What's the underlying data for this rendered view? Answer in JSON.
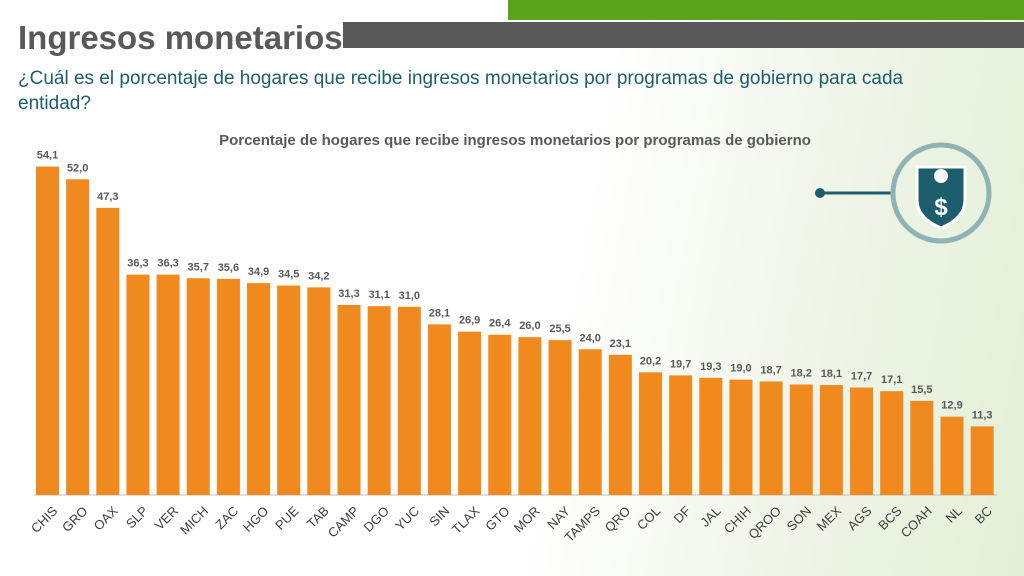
{
  "page": {
    "title": "Ingresos monetarios",
    "question": "¿Cuál es el porcentaje de hogares que recibe ingresos monetarios por programas de gobierno para cada entidad?"
  },
  "colors": {
    "bar": "#f0891e",
    "accent_green": "#5ba319",
    "accent_gray": "#595959",
    "teal": "#1c5e6e"
  },
  "icon": {
    "name": "money-shield-icon"
  },
  "chart_data": {
    "type": "bar",
    "title": "Porcentaje de hogares que recibe ingresos monetarios por programas de gobierno",
    "xlabel": "",
    "ylabel": "",
    "ylim": [
      0,
      56
    ],
    "categories": [
      "CHIS",
      "GRO",
      "OAX",
      "SLP",
      "VER",
      "MICH",
      "ZAC",
      "HGO",
      "PUE",
      "TAB",
      "CAMP",
      "DGO",
      "YUC",
      "SIN",
      "TLAX",
      "GTO",
      "MOR",
      "NAY",
      "TAMPS",
      "QRO",
      "COL",
      "DF",
      "JAL",
      "CHIH",
      "QROO",
      "SON",
      "MEX",
      "AGS",
      "BCS",
      "COAH",
      "NL",
      "BC"
    ],
    "values": [
      54.1,
      52.0,
      47.3,
      36.3,
      36.3,
      35.7,
      35.6,
      34.9,
      34.5,
      34.2,
      31.3,
      31.1,
      31.0,
      28.1,
      26.9,
      26.4,
      26.0,
      25.5,
      24.0,
      23.1,
      20.2,
      19.7,
      19.3,
      19.0,
      18.7,
      18.2,
      18.1,
      17.7,
      17.1,
      15.5,
      12.9,
      11.3
    ],
    "value_labels": [
      "54,1",
      "52,0",
      "47,3",
      "36,3",
      "36,3",
      "35,7",
      "35,6",
      "34,9",
      "34,5",
      "34,2",
      "31,3",
      "31,1",
      "31,0",
      "28,1",
      "26,9",
      "26,4",
      "26,0",
      "25,5",
      "24,0",
      "23,1",
      "20,2",
      "19,7",
      "19,3",
      "19,0",
      "18,7",
      "18,2",
      "18,1",
      "17,7",
      "17,1",
      "15,5",
      "12,9",
      "11,3"
    ],
    "grid": false,
    "legend": "none"
  }
}
